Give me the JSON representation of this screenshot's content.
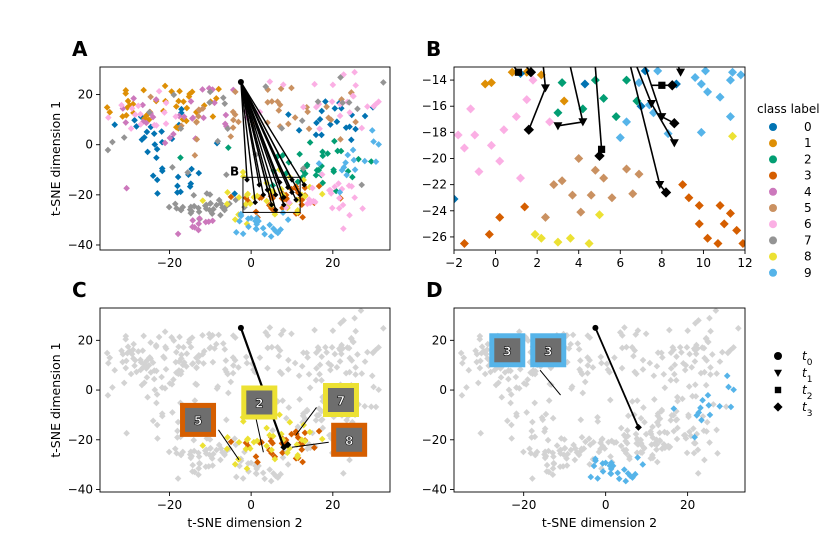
{
  "chart_data": {
    "type": "scatter",
    "description": "t-SNE embedding of network representations with trajectories of perturbed inputs",
    "class_colors": {
      "0": "#0173b2",
      "1": "#de8f05",
      "2": "#029e73",
      "3": "#d55e00",
      "4": "#cc78bc",
      "5": "#ca9161",
      "6": "#fbafe4",
      "7": "#949494",
      "8": "#ece133",
      "9": "#56b4e9"
    },
    "background_color": "#d3d3d3",
    "legend_title": "class label",
    "legend_classes": [
      "0",
      "1",
      "2",
      "3",
      "4",
      "5",
      "6",
      "7",
      "8",
      "9"
    ],
    "time_legend": [
      {
        "label": "t",
        "sub": "0",
        "marker": "circle"
      },
      {
        "label": "t",
        "sub": "1",
        "marker": "triangle-down"
      },
      {
        "label": "t",
        "sub": "2",
        "marker": "square"
      },
      {
        "label": "t",
        "sub": "3",
        "marker": "diamond"
      }
    ],
    "xlabel": "t-SNE dimension 2",
    "ylabel": "t-SNE dimension 1",
    "panels": [
      {
        "letter": "A",
        "xlim": [
          -37,
          34
        ],
        "ylim": [
          -42,
          31
        ],
        "xticks": [
          -20,
          0,
          20
        ],
        "yticks": [
          -40,
          -20,
          0,
          20
        ],
        "show_xlabel": false,
        "show_ylabel": true,
        "zoom_box": {
          "label": "B",
          "x": [
            -2,
            12
          ],
          "y": [
            -27,
            -13
          ]
        },
        "start": [
          -2.5,
          25
        ],
        "clusters": [
          {
            "cls": "0",
            "cx": -25,
            "cy": 5,
            "sx": 6,
            "sy": 6,
            "n": 20
          },
          {
            "cls": "0",
            "cx": 22,
            "cy": 10,
            "sx": 7,
            "sy": 5,
            "n": 20
          },
          {
            "cls": "1",
            "cx": -20,
            "cy": 15,
            "sx": 8,
            "sy": 5,
            "n": 40
          },
          {
            "cls": "2",
            "cx": 15,
            "cy": -8,
            "sx": 8,
            "sy": 6,
            "n": 35
          },
          {
            "cls": "3",
            "cx": 8,
            "cy": -22,
            "sx": 6,
            "sy": 4,
            "n": 35
          },
          {
            "cls": "4",
            "cx": -15,
            "cy": 12,
            "sx": 10,
            "sy": 7,
            "n": 30
          },
          {
            "cls": "5",
            "cx": 5,
            "cy": 12,
            "sx": 12,
            "sy": 7,
            "n": 40
          },
          {
            "cls": "6",
            "cx": 22,
            "cy": 18,
            "sx": 8,
            "sy": 6,
            "n": 30
          },
          {
            "cls": "6",
            "cx": -28,
            "cy": 12,
            "sx": 4,
            "sy": 4,
            "n": 15
          },
          {
            "cls": "7",
            "cx": -10,
            "cy": -25,
            "sx": 4,
            "sy": 3,
            "n": 35
          },
          {
            "cls": "8",
            "cx": 5,
            "cy": -20,
            "sx": 8,
            "sy": 5,
            "n": 35
          },
          {
            "cls": "9",
            "cx": 2,
            "cy": -32,
            "sx": 3,
            "sy": 2.5,
            "n": 25
          },
          {
            "cls": "4",
            "cx": -13,
            "cy": -32,
            "sx": 3,
            "sy": 2,
            "n": 10
          },
          {
            "cls": "6",
            "cx": 18,
            "cy": -22,
            "sx": 5,
            "sy": 4,
            "n": 25
          },
          {
            "cls": "0",
            "cx": -18,
            "cy": -15,
            "sx": 5,
            "sy": 4,
            "n": 15
          },
          {
            "cls": "9",
            "cx": 25,
            "cy": -5,
            "sx": 4,
            "sy": 6,
            "n": 15
          },
          {
            "cls": "7",
            "cx": 0,
            "cy": 5,
            "sx": 15,
            "sy": 10,
            "n": 30
          }
        ],
        "trajectory_ends": [
          [
            4,
            -18
          ],
          [
            6,
            -20
          ],
          [
            8,
            -21
          ],
          [
            10,
            -19
          ],
          [
            11,
            -22
          ],
          [
            7,
            -15
          ],
          [
            5,
            -24
          ],
          [
            2,
            -16
          ],
          [
            9,
            -17
          ],
          [
            12,
            -20
          ],
          [
            3,
            -20
          ],
          [
            1,
            -23
          ],
          [
            10,
            -14
          ],
          [
            6,
            -26
          ],
          [
            -1,
            -14
          ],
          [
            8,
            -24
          ],
          [
            13,
            -16
          ]
        ]
      },
      {
        "letter": "B",
        "xlim": [
          -2,
          12
        ],
        "ylim": [
          -27,
          -13
        ],
        "xticks": [
          -2,
          0,
          2,
          4,
          6,
          8,
          10,
          12
        ],
        "yticks": [
          -26,
          -24,
          -22,
          -20,
          -18,
          -16,
          -14
        ],
        "show_xlabel": false,
        "show_ylabel": false,
        "points": [
          {
            "cls": "6",
            "x": -1.8,
            "y": -18.2
          },
          {
            "cls": "6",
            "x": -1.0,
            "y": -18.2
          },
          {
            "cls": "6",
            "x": -1.5,
            "y": -19.2
          },
          {
            "cls": "6",
            "x": -0.2,
            "y": -19.0
          },
          {
            "cls": "6",
            "x": 0.4,
            "y": -17.8
          },
          {
            "cls": "6",
            "x": 1.0,
            "y": -16.8
          },
          {
            "cls": "6",
            "x": -0.8,
            "y": -21.0
          },
          {
            "cls": "6",
            "x": 1.2,
            "y": -21.5
          },
          {
            "cls": "6",
            "x": 0.2,
            "y": -20.2
          },
          {
            "cls": "6",
            "x": 2.6,
            "y": -17.2
          },
          {
            "cls": "6",
            "x": 1.5,
            "y": -15.5
          },
          {
            "cls": "6",
            "x": 1.8,
            "y": -14.0
          },
          {
            "cls": "6",
            "x": -1.2,
            "y": -16.2
          },
          {
            "cls": "1",
            "x": -0.5,
            "y": -14.3
          },
          {
            "cls": "1",
            "x": -0.2,
            "y": -14.2
          },
          {
            "cls": "1",
            "x": 0.8,
            "y": -13.4
          },
          {
            "cls": "1",
            "x": 1.5,
            "y": -13.4
          },
          {
            "cls": "1",
            "x": 2.2,
            "y": -13.6
          },
          {
            "cls": "1",
            "x": 3.3,
            "y": -15.6
          },
          {
            "cls": "0",
            "x": 1.2,
            "y": -13.5
          },
          {
            "cls": "0",
            "x": 4.3,
            "y": -14.3
          },
          {
            "cls": "0",
            "x": 7.0,
            "y": -16.0
          },
          {
            "cls": "0",
            "x": 7.2,
            "y": -13.3
          },
          {
            "cls": "0",
            "x": 8.7,
            "y": -14.3
          },
          {
            "cls": "0",
            "x": -2,
            "y": -23.1
          },
          {
            "cls": "2",
            "x": 3.2,
            "y": -14.2
          },
          {
            "cls": "2",
            "x": 3.0,
            "y": -16.5
          },
          {
            "cls": "2",
            "x": 4.2,
            "y": -16.2
          },
          {
            "cls": "2",
            "x": 5.2,
            "y": -15.4
          },
          {
            "cls": "2",
            "x": 6.3,
            "y": -14.0
          },
          {
            "cls": "2",
            "x": 6.8,
            "y": -15.6
          },
          {
            "cls": "2",
            "x": 4.8,
            "y": -14.0
          },
          {
            "cls": "2",
            "x": 5.8,
            "y": -16.8
          },
          {
            "cls": "9",
            "x": 6.0,
            "y": -18.4
          },
          {
            "cls": "9",
            "x": 6.3,
            "y": -17.2
          },
          {
            "cls": "9",
            "x": 7.4,
            "y": -15.9
          },
          {
            "cls": "9",
            "x": 7.6,
            "y": -16.5
          },
          {
            "cls": "9",
            "x": 9.6,
            "y": -13.8
          },
          {
            "cls": "9",
            "x": 9.9,
            "y": -14.3
          },
          {
            "cls": "9",
            "x": 10.1,
            "y": -13.3
          },
          {
            "cls": "9",
            "x": 11.3,
            "y": -14.0
          },
          {
            "cls": "9",
            "x": 11.4,
            "y": -13.4
          },
          {
            "cls": "9",
            "x": 10.2,
            "y": -14.9
          },
          {
            "cls": "9",
            "x": 10.8,
            "y": -15.3
          },
          {
            "cls": "9",
            "x": 11.8,
            "y": -13.6
          },
          {
            "cls": "9",
            "x": 6.9,
            "y": -14.2
          },
          {
            "cls": "9",
            "x": 8.3,
            "y": -18.1
          },
          {
            "cls": "9",
            "x": 11.3,
            "y": -16.8
          },
          {
            "cls": "9",
            "x": 9.9,
            "y": -18.0
          },
          {
            "cls": "9",
            "x": 7.8,
            "y": -13.3
          },
          {
            "cls": "5",
            "x": 4.0,
            "y": -20.0
          },
          {
            "cls": "5",
            "x": 3.2,
            "y": -21.7
          },
          {
            "cls": "5",
            "x": 4.8,
            "y": -20.9
          },
          {
            "cls": "5",
            "x": 2.8,
            "y": -22.0
          },
          {
            "cls": "5",
            "x": 5.2,
            "y": -21.5
          },
          {
            "cls": "5",
            "x": 3.7,
            "y": -22.8
          },
          {
            "cls": "5",
            "x": 4.6,
            "y": -22.8
          },
          {
            "cls": "5",
            "x": 5.6,
            "y": -23.0
          },
          {
            "cls": "5",
            "x": 2.4,
            "y": -24.5
          },
          {
            "cls": "5",
            "x": 6.6,
            "y": -22.7
          },
          {
            "cls": "5",
            "x": 6.9,
            "y": -21.2
          },
          {
            "cls": "5",
            "x": 4.1,
            "y": -24.1
          },
          {
            "cls": "5",
            "x": 6.3,
            "y": -20.8
          },
          {
            "cls": "3",
            "x": -1.5,
            "y": -26.5
          },
          {
            "cls": "3",
            "x": -0.3,
            "y": -25.8
          },
          {
            "cls": "3",
            "x": 1.4,
            "y": -23.7
          },
          {
            "cls": "3",
            "x": 0.2,
            "y": -24.5
          },
          {
            "cls": "3",
            "x": 9.0,
            "y": -22.0
          },
          {
            "cls": "3",
            "x": 9.3,
            "y": -23.0
          },
          {
            "cls": "3",
            "x": 9.8,
            "y": -23.6
          },
          {
            "cls": "3",
            "x": 10.8,
            "y": -23.6
          },
          {
            "cls": "3",
            "x": 11.3,
            "y": -24.2
          },
          {
            "cls": "3",
            "x": 11.0,
            "y": -25.0
          },
          {
            "cls": "3",
            "x": 9.8,
            "y": -25.0
          },
          {
            "cls": "3",
            "x": 11.6,
            "y": -25.5
          },
          {
            "cls": "3",
            "x": 10.2,
            "y": -26.1
          },
          {
            "cls": "3",
            "x": 10.7,
            "y": -26.5
          },
          {
            "cls": "3",
            "x": 11.9,
            "y": -26.5
          },
          {
            "cls": "8",
            "x": 1.9,
            "y": -25.8
          },
          {
            "cls": "8",
            "x": 2.2,
            "y": -26.1
          },
          {
            "cls": "8",
            "x": 3.0,
            "y": -26.4
          },
          {
            "cls": "8",
            "x": 3.6,
            "y": -26.1
          },
          {
            "cls": "8",
            "x": 4.5,
            "y": -26.5
          },
          {
            "cls": "8",
            "x": 5.0,
            "y": -24.3
          },
          {
            "cls": "8",
            "x": 11.4,
            "y": -18.3
          }
        ],
        "arrows": [
          {
            "x1": 0.9,
            "y1": -13.0,
            "x2": 1.1,
            "y2": -13.4,
            "end": "square"
          },
          {
            "x1": 1.5,
            "y1": -13.0,
            "x2": 1.7,
            "y2": -13.4,
            "end": "diamond"
          },
          {
            "x1": 2.3,
            "y1": -13.0,
            "x2": 2.4,
            "y2": -14.6,
            "end": "triangle",
            "then": [
              1.6,
              -17.8,
              "diamond"
            ]
          },
          {
            "x1": 3.6,
            "y1": -13.0,
            "x2": 4.2,
            "y2": -17.2,
            "end": "triangle",
            "then": [
              3.0,
              -17.5,
              "triangle"
            ]
          },
          {
            "x1": 4.8,
            "y1": -13.0,
            "x2": 5.1,
            "y2": -19.3,
            "end": "square",
            "then": [
              5.0,
              -19.8,
              "diamond"
            ]
          },
          {
            "x1": 6.8,
            "y1": -13.0,
            "x2": 7.5,
            "y2": -15.8,
            "end": "triangle",
            "then": [
              8.6,
              -18.8,
              "triangle"
            ]
          },
          {
            "x1": 7.2,
            "y1": -13.0,
            "x2": 8.0,
            "y2": -16.8,
            "end": "triangle",
            "then": [
              8.6,
              -17.3,
              "diamond"
            ]
          },
          {
            "x1": 6.5,
            "y1": -13.0,
            "x2": 7.9,
            "y2": -22.0,
            "end": "triangle",
            "then": [
              8.2,
              -22.6,
              "diamond"
            ]
          },
          {
            "x1": 7.5,
            "y1": -14.4,
            "x2": 8.0,
            "y2": -14.4,
            "end": "square",
            "then": [
              8.5,
              -14.4,
              "diamond"
            ]
          },
          {
            "x1": 8.8,
            "y1": -13.0,
            "x2": 8.9,
            "y2": -13.4,
            "end": "triangle"
          }
        ]
      },
      {
        "letter": "C",
        "xlim": [
          -37,
          34
        ],
        "ylim": [
          -41,
          33
        ],
        "xticks": [
          -20,
          0,
          20
        ],
        "yticks": [
          -40,
          -20,
          0,
          20
        ],
        "show_xlabel": true,
        "show_ylabel": true,
        "highlight_classes": [
          "3",
          "8"
        ],
        "start": [
          -2.5,
          25
        ],
        "path_end_a": [
          8,
          -23
        ],
        "path_end_b": [
          9,
          -22
        ],
        "insets": [
          {
            "text": "5",
            "border_cls": "3",
            "x": -13,
            "y": -12
          },
          {
            "text": "2",
            "border_cls": "8",
            "x": 2,
            "y": -5
          },
          {
            "text": "7",
            "border_cls": "8",
            "x": 22,
            "y": -4
          },
          {
            "text": "8",
            "border_cls": "3",
            "x": 24,
            "y": -20
          }
        ],
        "inset_lines": [
          [
            [
              -8,
              -16
            ],
            [
              -3,
              -28
            ]
          ],
          [
            [
              1,
              -10
            ],
            [
              3,
              -25
            ]
          ],
          [
            [
              16,
              -7
            ],
            [
              11,
              -18
            ]
          ],
          [
            [
              19,
              -21
            ],
            [
              10,
              -23
            ]
          ]
        ]
      },
      {
        "letter": "D",
        "xlim": [
          -37,
          34
        ],
        "ylim": [
          -41,
          33
        ],
        "xticks": [
          -20,
          0,
          20
        ],
        "yticks": [
          -40,
          -20,
          0,
          20
        ],
        "show_xlabel": true,
        "show_ylabel": false,
        "highlight_classes": [
          "9"
        ],
        "start": [
          -2.5,
          25
        ],
        "path_end": [
          8,
          -15
        ],
        "insets": [
          {
            "text": "3",
            "border_cls": "9",
            "x": -24,
            "y": 16
          },
          {
            "text": "3",
            "border_cls": "9",
            "x": -14,
            "y": 16
          }
        ],
        "inset_lines": [
          [
            [
              -16,
              8
            ],
            [
              -11,
              -2
            ]
          ]
        ]
      }
    ]
  }
}
